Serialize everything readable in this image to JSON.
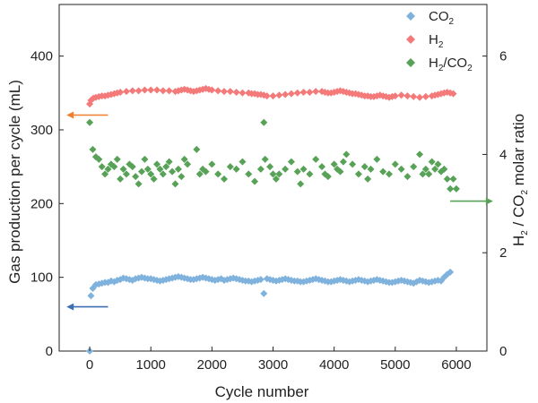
{
  "chart_data": {
    "type": "scatter",
    "xlabel": "Cycle number",
    "ylabel": "Gas production per cycle (mL)",
    "y2label": {
      "pre": "H",
      "sub1": "2",
      "mid": " / CO",
      "sub2": "2",
      "post": " molar ratio"
    },
    "xlim": [
      -500,
      6500
    ],
    "ylim": [
      0,
      470
    ],
    "y2lim": [
      0,
      7.05
    ],
    "x_ticks": [
      0,
      1000,
      2000,
      3000,
      4000,
      5000,
      6000
    ],
    "y_ticks": [
      0,
      100,
      200,
      300,
      400
    ],
    "y2_ticks": [
      0,
      2,
      4,
      6
    ],
    "grid": false,
    "legend": "top-right",
    "series": [
      {
        "name": {
          "base": "CO",
          "sub": "2"
        },
        "axis": "left",
        "color": "#7fb2dc",
        "values": [
          0,
          75,
          85,
          90,
          91,
          92,
          93,
          93,
          95,
          94,
          96,
          97,
          99,
          98,
          97,
          96,
          98,
          99,
          100,
          99,
          98,
          98,
          97,
          96,
          95,
          96,
          97,
          98,
          99,
          100,
          101,
          100,
          99,
          98,
          97,
          97,
          98,
          99,
          100,
          99,
          98,
          97,
          96,
          97,
          98,
          78,
          96,
          97,
          98,
          99,
          98,
          97,
          96,
          95,
          95,
          94,
          95,
          96,
          97,
          98,
          97,
          96,
          95,
          96,
          97,
          98,
          97,
          96,
          95,
          95,
          94,
          94,
          95,
          96,
          97,
          98,
          97,
          96,
          95,
          94,
          94,
          95,
          96,
          97,
          96,
          95,
          94,
          95,
          96,
          97,
          96,
          95,
          94,
          95,
          96,
          97,
          96,
          95,
          94,
          93,
          93,
          94,
          95,
          96,
          95,
          94,
          93,
          92,
          94,
          96,
          95,
          94,
          93,
          94,
          95,
          96,
          95,
          100,
          104,
          107
        ],
        "x": [
          0,
          20,
          50,
          100,
          150,
          200,
          250,
          300,
          350,
          400,
          450,
          500,
          550,
          600,
          650,
          700,
          750,
          800,
          850,
          900,
          950,
          1000,
          1050,
          1100,
          1150,
          1200,
          1250,
          1300,
          1350,
          1400,
          1450,
          1500,
          1550,
          1600,
          1650,
          1700,
          1750,
          1800,
          1850,
          1900,
          1950,
          2000,
          2050,
          2100,
          2150,
          2850,
          2200,
          2250,
          2300,
          2350,
          2400,
          2450,
          2500,
          2550,
          2600,
          2650,
          2700,
          2750,
          2800,
          2900,
          2950,
          3000,
          3050,
          3100,
          3150,
          3200,
          3250,
          3300,
          3350,
          3400,
          3450,
          3500,
          3550,
          3600,
          3650,
          3700,
          3750,
          3800,
          3850,
          3900,
          3950,
          4000,
          4050,
          4100,
          4150,
          4200,
          4250,
          4300,
          4350,
          4400,
          4450,
          4500,
          4550,
          4600,
          4650,
          4700,
          4750,
          4800,
          4850,
          4900,
          4950,
          5000,
          5050,
          5100,
          5150,
          5200,
          5250,
          5300,
          5350,
          5400,
          5450,
          5500,
          5550,
          5600,
          5650,
          5700,
          5750,
          5800,
          5850,
          5900
        ]
      },
      {
        "name": {
          "base": "H",
          "sub": "2"
        },
        "axis": "left",
        "color": "#f47a7a",
        "values": [
          335,
          340,
          343,
          344,
          345,
          346,
          346,
          347,
          348,
          349,
          350,
          351,
          352,
          353,
          353,
          354,
          354,
          354,
          353,
          353,
          352,
          353,
          354,
          355,
          354,
          353,
          352,
          353,
          354,
          355,
          356,
          355,
          354,
          353,
          352,
          352,
          351,
          350,
          350,
          349,
          349,
          348,
          348,
          347,
          346,
          346,
          347,
          348,
          349,
          350,
          351,
          351,
          352,
          352,
          351,
          350,
          350,
          351,
          352,
          353,
          352,
          351,
          350,
          349,
          349,
          348,
          347,
          346,
          346,
          345,
          345,
          346,
          347,
          346,
          345,
          344,
          345,
          346,
          347,
          346,
          345,
          344,
          345,
          346,
          347,
          348,
          349,
          350,
          351,
          350,
          349
        ],
        "x": [
          0,
          20,
          60,
          100,
          150,
          200,
          250,
          300,
          350,
          400,
          450,
          500,
          600,
          700,
          800,
          900,
          1000,
          1100,
          1200,
          1300,
          1400,
          1450,
          1500,
          1550,
          1600,
          1650,
          1700,
          1750,
          1800,
          1850,
          1900,
          1950,
          2000,
          2100,
          2200,
          2300,
          2400,
          2500,
          2600,
          2650,
          2700,
          2750,
          2800,
          2850,
          2900,
          3000,
          3100,
          3200,
          3300,
          3400,
          3500,
          3600,
          3700,
          3800,
          3850,
          3900,
          3950,
          4000,
          4050,
          4100,
          4150,
          4200,
          4250,
          4300,
          4350,
          4400,
          4450,
          4500,
          4550,
          4600,
          4650,
          4700,
          4750,
          4800,
          4850,
          4900,
          4950,
          5000,
          5100,
          5200,
          5300,
          5400,
          5500,
          5600,
          5650,
          5700,
          5750,
          5800,
          5850,
          5900,
          5950
        ]
      },
      {
        "name": {
          "base": "H",
          "sub": "2",
          "suffix_base": "/CO",
          "suffix_sub": "2"
        },
        "axis": "right",
        "color": "#57a257",
        "values": [
          4.65,
          4.1,
          3.95,
          3.9,
          3.75,
          3.6,
          3.7,
          3.8,
          3.75,
          3.9,
          3.5,
          3.7,
          3.6,
          3.8,
          3.75,
          3.55,
          3.4,
          3.65,
          3.9,
          3.7,
          3.6,
          3.5,
          3.8,
          3.7,
          3.6,
          3.75,
          3.85,
          3.65,
          3.4,
          3.7,
          3.55,
          3.9,
          3.8,
          4.1,
          3.6,
          3.7,
          3.65,
          3.8,
          3.6,
          3.5,
          3.75,
          3.7,
          3.85,
          3.6,
          3.45,
          3.7,
          3.9,
          4.65,
          3.75,
          3.6,
          3.5,
          3.6,
          3.7,
          3.85,
          3.65,
          3.4,
          3.7,
          3.6,
          3.9,
          3.75,
          3.6,
          3.55,
          3.8,
          3.7,
          3.65,
          3.85,
          4.0,
          3.8,
          3.6,
          3.75,
          3.5,
          3.7,
          3.9,
          3.65,
          3.6,
          3.8,
          3.7,
          3.55,
          3.75,
          4.0,
          3.6,
          3.7,
          3.6,
          3.85,
          3.7,
          3.8,
          3.65,
          3.7,
          3.5,
          3.3,
          3.5,
          3.3
        ],
        "x": [
          0,
          50,
          100,
          150,
          200,
          250,
          300,
          350,
          400,
          450,
          500,
          550,
          600,
          650,
          700,
          750,
          800,
          850,
          900,
          950,
          1000,
          1050,
          1100,
          1150,
          1200,
          1250,
          1300,
          1350,
          1400,
          1450,
          1500,
          1550,
          1600,
          1750,
          1800,
          1850,
          1900,
          2000,
          2100,
          2200,
          2300,
          2400,
          2500,
          2600,
          2700,
          2800,
          2870,
          2850,
          2950,
          3000,
          3050,
          3100,
          3200,
          3300,
          3400,
          3450,
          3500,
          3600,
          3700,
          3800,
          3850,
          3900,
          4000,
          4050,
          4100,
          4150,
          4200,
          4300,
          4400,
          4500,
          4550,
          4600,
          4700,
          4800,
          4900,
          5000,
          5100,
          5200,
          5300,
          5400,
          5450,
          5500,
          5550,
          5600,
          5650,
          5700,
          5750,
          5800,
          5850,
          5900,
          5950,
          6000
        ]
      }
    ],
    "annotations": [
      {
        "type": "arrow",
        "direction": "left",
        "axis": "left",
        "y": 320,
        "x_from": 300,
        "x_to": -380,
        "color": "#f07f2f"
      },
      {
        "type": "arrow",
        "direction": "left",
        "axis": "left",
        "y": 60,
        "x_from": 300,
        "x_to": -380,
        "color": "#3e6fb3"
      },
      {
        "type": "arrow",
        "direction": "right",
        "axis": "right",
        "y": 3.05,
        "x_from": 5900,
        "x_to": 6600,
        "color": "#57a257"
      }
    ]
  }
}
